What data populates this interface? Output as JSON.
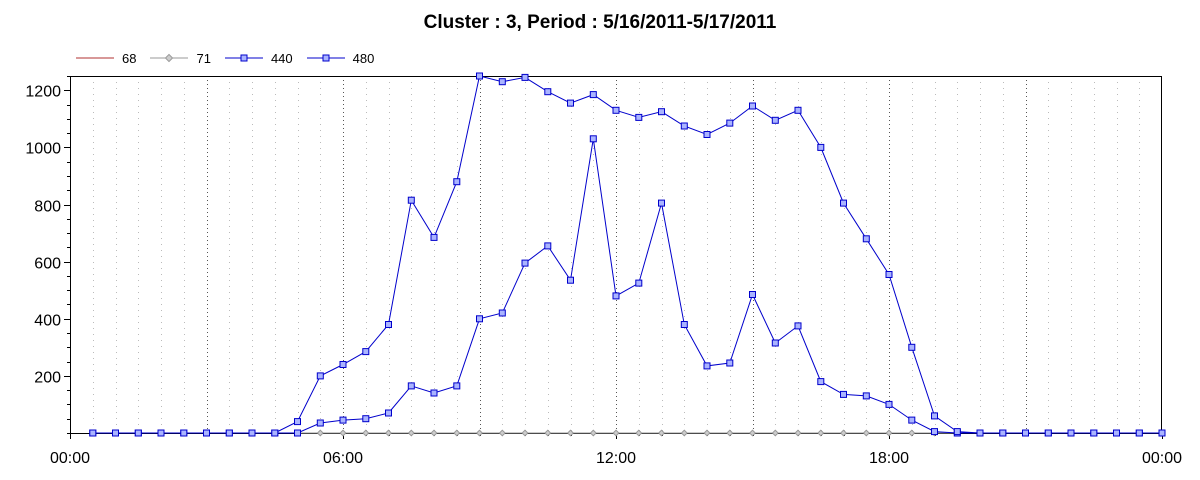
{
  "chart_data": {
    "type": "line",
    "title": "Cluster : 3, Period : 5/16/2011-5/17/2011",
    "xlabel": "",
    "ylabel": "",
    "xlim": [
      "00:00",
      "24:00"
    ],
    "ylim": [
      0,
      1250
    ],
    "x_tick_labels": [
      "00:00",
      "06:00",
      "12:00",
      "18:00",
      "00:00"
    ],
    "y_ticks": [
      200,
      400,
      600,
      800,
      1000,
      1200
    ],
    "grid": true,
    "legend_position": "top-left",
    "x": [
      "00:30",
      "01:00",
      "01:30",
      "02:00",
      "02:30",
      "03:00",
      "03:30",
      "04:00",
      "04:30",
      "05:00",
      "05:30",
      "06:00",
      "06:30",
      "07:00",
      "07:30",
      "08:00",
      "08:30",
      "09:00",
      "09:30",
      "10:00",
      "10:30",
      "11:00",
      "11:30",
      "12:00",
      "12:30",
      "13:00",
      "13:30",
      "14:00",
      "14:30",
      "15:00",
      "15:30",
      "16:00",
      "16:30",
      "17:00",
      "17:30",
      "18:00",
      "18:30",
      "19:00",
      "19:30",
      "20:00",
      "20:30",
      "21:00",
      "21:30",
      "22:00",
      "22:30",
      "23:00",
      "23:30",
      "24:00"
    ],
    "series": [
      {
        "name": "68",
        "color": "#b03030",
        "marker": "none",
        "values": [
          0,
          0,
          0,
          0,
          0,
          0,
          0,
          0,
          0,
          0,
          0,
          0,
          0,
          0,
          0,
          0,
          0,
          0,
          0,
          0,
          0,
          0,
          0,
          0,
          0,
          0,
          0,
          0,
          0,
          0,
          0,
          0,
          0,
          0,
          0,
          0,
          0,
          0,
          0,
          0,
          0,
          0,
          0,
          0,
          0,
          0,
          0,
          0
        ]
      },
      {
        "name": "71",
        "color": "#999999",
        "marker": "diamond",
        "values": [
          0,
          0,
          0,
          0,
          0,
          0,
          0,
          0,
          0,
          0,
          0,
          0,
          0,
          0,
          0,
          0,
          0,
          0,
          0,
          0,
          0,
          0,
          0,
          0,
          0,
          0,
          0,
          0,
          0,
          0,
          0,
          0,
          0,
          0,
          0,
          0,
          0,
          0,
          0,
          0,
          0,
          0,
          0,
          0,
          0,
          0,
          0,
          0
        ]
      },
      {
        "name": "440",
        "color": "#0000cc",
        "marker": "square",
        "values": [
          0,
          0,
          0,
          0,
          0,
          0,
          0,
          0,
          0,
          0,
          35,
          45,
          50,
          70,
          165,
          140,
          165,
          400,
          420,
          595,
          655,
          535,
          1030,
          480,
          525,
          805,
          380,
          235,
          245,
          485,
          315,
          375,
          180,
          135,
          130,
          100,
          45,
          5,
          0,
          0,
          0,
          0,
          0,
          0,
          0,
          0,
          0,
          0
        ]
      },
      {
        "name": "480",
        "color": "#0000cc",
        "marker": "square",
        "values": [
          0,
          0,
          0,
          0,
          0,
          0,
          0,
          0,
          0,
          40,
          200,
          240,
          285,
          380,
          815,
          685,
          880,
          1250,
          1230,
          1245,
          1195,
          1155,
          1185,
          1130,
          1105,
          1125,
          1075,
          1045,
          1085,
          1145,
          1095,
          1130,
          1000,
          805,
          680,
          555,
          300,
          60,
          5,
          0,
          0,
          0,
          0,
          0,
          0,
          0,
          0,
          0
        ]
      }
    ]
  }
}
